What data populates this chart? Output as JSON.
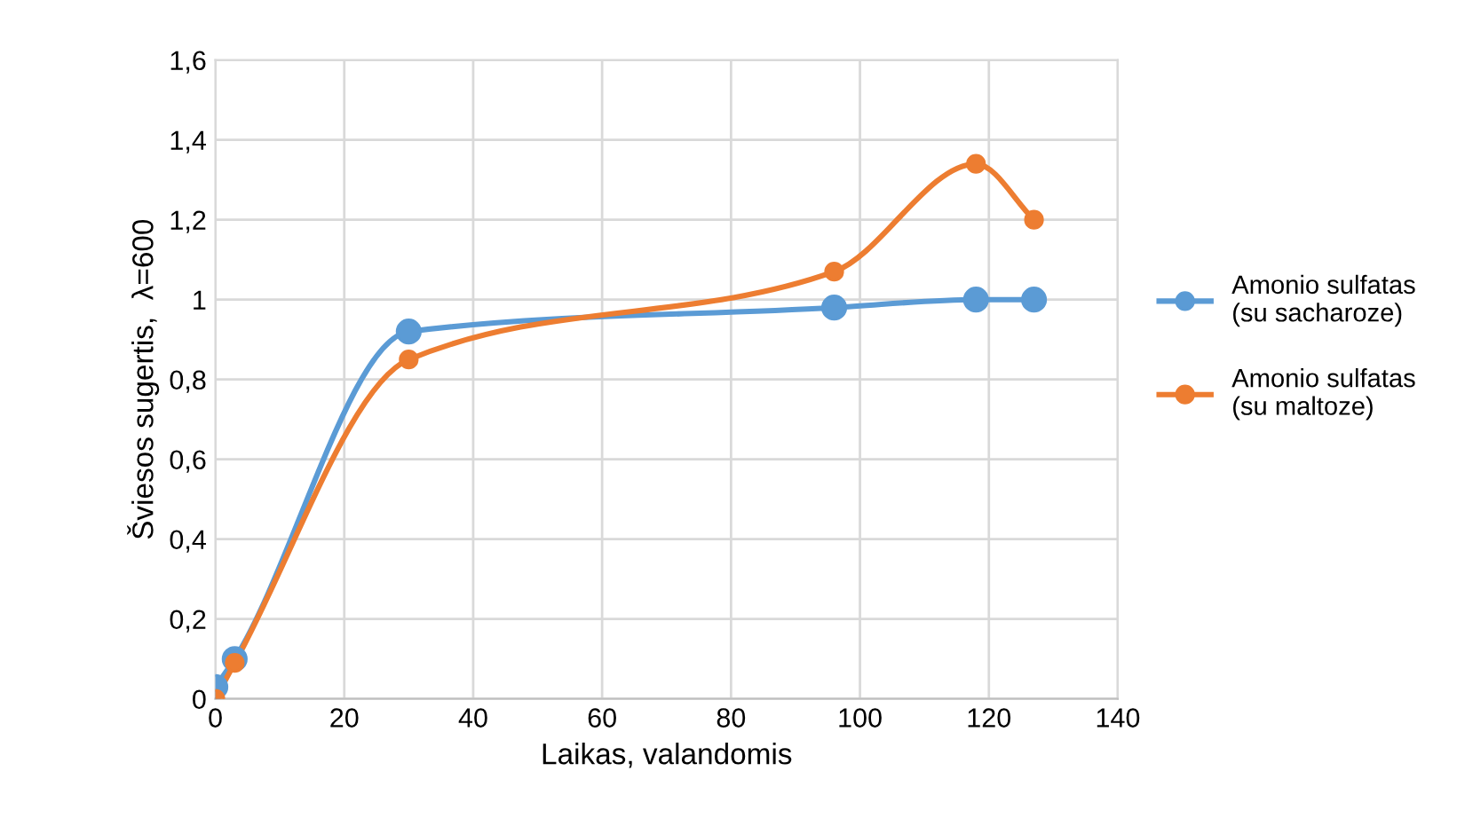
{
  "chart_data": {
    "type": "line",
    "xlabel": "Laikas, valandomis",
    "ylabel": "Šviesos sugertis,  λ=600",
    "series": [
      {
        "name": "Amonio sulfatas\n(su sacharoze)",
        "color": "#5b9bd5",
        "x": [
          0,
          3,
          30,
          96,
          118,
          127
        ],
        "values": [
          0.03,
          0.1,
          0.92,
          0.98,
          1.0,
          1.0
        ]
      },
      {
        "name": "Amonio sulfatas\n(su maltoze)",
        "color": "#ed7d31",
        "x": [
          0,
          3,
          30,
          96,
          118,
          127
        ],
        "values": [
          0.0,
          0.09,
          0.85,
          1.07,
          1.34,
          1.2
        ]
      }
    ],
    "xlim": [
      0,
      140
    ],
    "xticks": [
      0,
      20,
      40,
      60,
      80,
      100,
      120,
      140
    ],
    "ylim": [
      0,
      1.6
    ],
    "yticks": [
      0,
      {
        "value": 0.2,
        "label": "0,2"
      },
      {
        "value": 0.4,
        "label": "0,4"
      },
      {
        "value": 0.6,
        "label": "0,6"
      },
      {
        "value": 0.8,
        "label": "0,8"
      },
      1,
      {
        "value": 1.2,
        "label": "1,2"
      },
      {
        "value": 1.4,
        "label": "1,4"
      },
      {
        "value": 1.6,
        "label": "1,6"
      }
    ],
    "grid": true,
    "legend": "right",
    "marker": "circle",
    "line_style": "solid"
  }
}
